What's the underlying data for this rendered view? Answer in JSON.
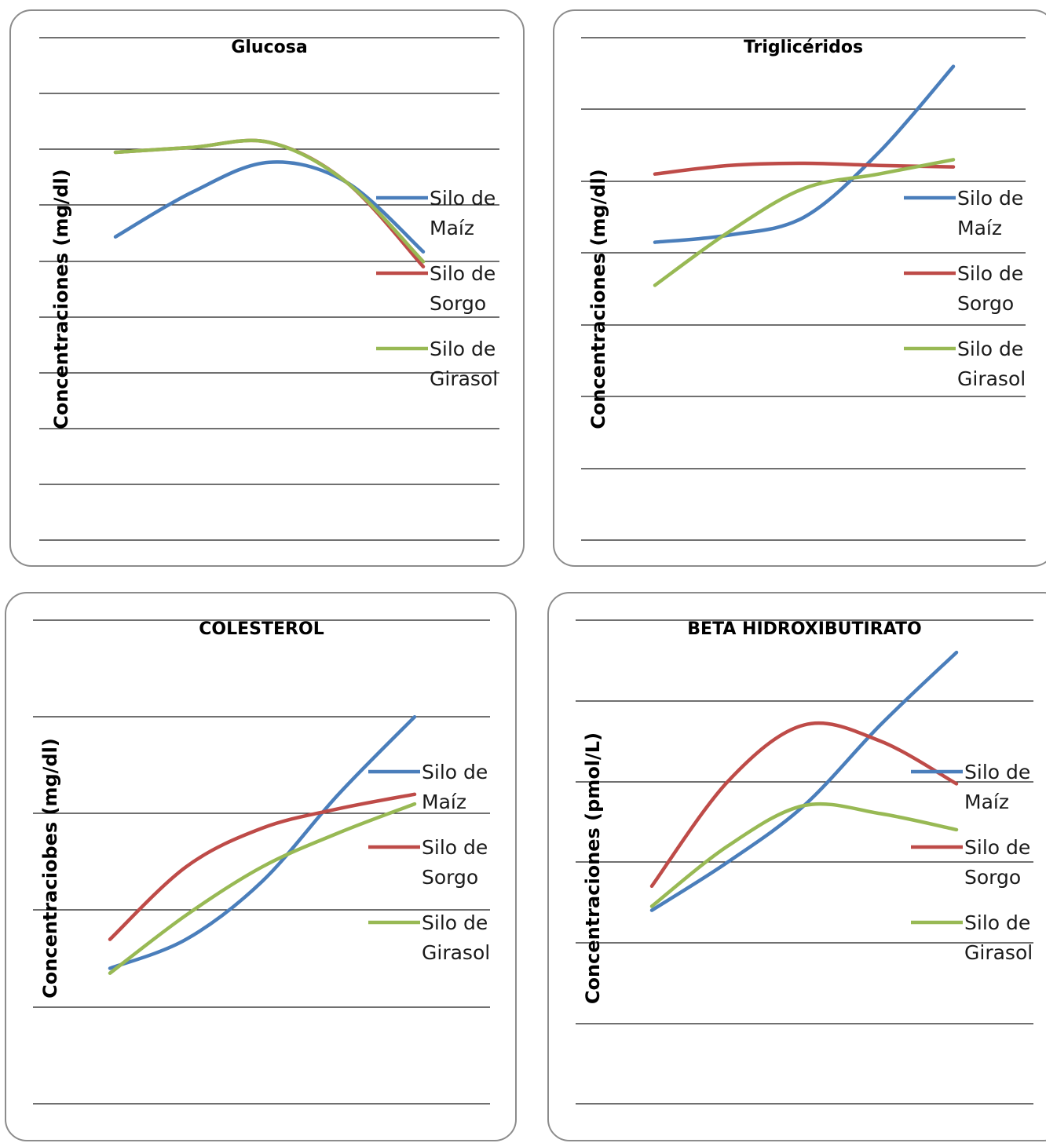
{
  "legend_words": [
    "Silo de",
    "Maíz",
    "Sorgo",
    "Girasol"
  ],
  "chart_data": [
    {
      "type": "line",
      "title": "Glucosa",
      "ylabel": "Concentraciones (mg/dl)",
      "ylim": [
        0,
        9
      ],
      "grid": true,
      "legend_position": "right",
      "x": [
        1,
        2,
        3,
        4,
        5
      ],
      "series": [
        {
          "name": "Silo de Maíz",
          "color": "#4a7ebb",
          "values": [
            6.1,
            7.0,
            7.6,
            7.2,
            5.8
          ]
        },
        {
          "name": "Silo de Sorgo",
          "color": "#be4b48",
          "values": [
            7.8,
            7.9,
            8.0,
            7.2,
            5.5
          ]
        },
        {
          "name": "Silo de Girasol",
          "color": "#98b954",
          "values": [
            7.8,
            7.9,
            8.0,
            7.2,
            5.6
          ]
        }
      ]
    },
    {
      "type": "line",
      "title": "Triglicéridos",
      "ylabel": "Concentraciones (mg/dl)",
      "ylim": [
        0,
        7
      ],
      "grid": true,
      "legend_position": "right",
      "x": [
        1,
        2,
        3,
        4,
        5
      ],
      "series": [
        {
          "name": "Silo de Maíz",
          "color": "#4a7ebb",
          "values": [
            4.15,
            4.25,
            4.5,
            5.4,
            6.6
          ]
        },
        {
          "name": "Silo de Sorgo",
          "color": "#be4b48",
          "values": [
            5.1,
            5.22,
            5.25,
            5.22,
            5.2
          ]
        },
        {
          "name": "Silo de Girasol",
          "color": "#98b954",
          "values": [
            3.55,
            4.3,
            4.9,
            5.1,
            5.3
          ]
        }
      ]
    },
    {
      "type": "line",
      "title": "COLESTEROL",
      "ylabel": "Concentraciobes (mg/dl)",
      "ylim": [
        0,
        5
      ],
      "grid": true,
      "legend_position": "right",
      "x": [
        1,
        2,
        3,
        4,
        5
      ],
      "series": [
        {
          "name": "Silo de Maíz",
          "color": "#4a7ebb",
          "values": [
            1.4,
            1.7,
            2.3,
            3.2,
            4.0
          ]
        },
        {
          "name": "Silo de Sorgo",
          "color": "#be4b48",
          "values": [
            1.7,
            2.45,
            2.85,
            3.05,
            3.2
          ]
        },
        {
          "name": "Silo de Girasol",
          "color": "#98b954",
          "values": [
            1.35,
            1.95,
            2.45,
            2.8,
            3.1
          ]
        }
      ]
    },
    {
      "type": "line",
      "title": "BETA HIDROXIBUTIRATO",
      "ylabel": "Concentraciones (pmol/L)",
      "ylim": [
        0,
        6
      ],
      "grid": true,
      "legend_position": "right",
      "x": [
        1,
        2,
        3,
        4,
        5
      ],
      "series": [
        {
          "name": "Silo de Maíz",
          "color": "#4a7ebb",
          "values": [
            2.4,
            3.0,
            3.7,
            4.7,
            5.6
          ]
        },
        {
          "name": "Silo de Sorgo",
          "color": "#be4b48",
          "values": [
            2.7,
            4.0,
            4.7,
            4.5,
            3.97
          ]
        },
        {
          "name": "Silo de Girasol",
          "color": "#98b954",
          "values": [
            2.45,
            3.2,
            3.7,
            3.6,
            3.4
          ]
        }
      ]
    }
  ]
}
